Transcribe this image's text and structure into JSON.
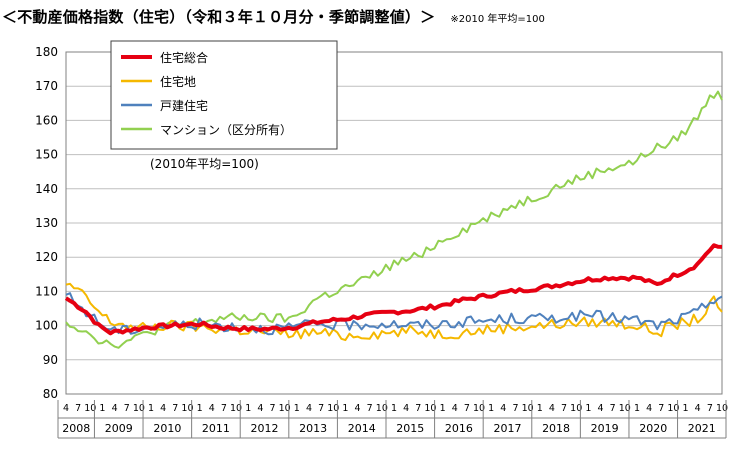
{
  "title": "＜不動産価格指数（住宅）（令和３年１０月分・季節調整値）＞",
  "base_note": "※2010 年平均=100",
  "chart_data": {
    "type": "line",
    "title": "＜不動産価格指数（住宅）（令和３年１０月分・季節調整値）＞",
    "annotation": "(2010年平均=100)",
    "ylim": [
      80,
      180
    ],
    "y_ticks": [
      80,
      90,
      100,
      110,
      120,
      130,
      140,
      150,
      160,
      170,
      180
    ],
    "x_start": "2008-04",
    "x_end": "2021-10",
    "month_tick_labels": [
      "4",
      "7",
      "10",
      "1"
    ],
    "year_labels": [
      "2008",
      "2009",
      "2010",
      "2011",
      "2012",
      "2013",
      "2014",
      "2015",
      "2016",
      "2017",
      "2018",
      "2019",
      "2020",
      "2021"
    ],
    "grid": true,
    "legend_position": "top-left",
    "series": [
      {
        "name": "住宅総合",
        "color": "#e60012",
        "width": 4,
        "anchors": [
          [
            "2008-04",
            108
          ],
          [
            "2008-06",
            106.5
          ],
          [
            "2008-09",
            104
          ],
          [
            "2008-12",
            100
          ],
          [
            "2009-03",
            98
          ],
          [
            "2009-06",
            98.5
          ],
          [
            "2009-09",
            99
          ],
          [
            "2009-12",
            99.5
          ],
          [
            "2010-06",
            100
          ],
          [
            "2011-01",
            100.5
          ],
          [
            "2011-06",
            99.5
          ],
          [
            "2012-01",
            99
          ],
          [
            "2012-06",
            99
          ],
          [
            "2012-12",
            99.5
          ],
          [
            "2013-06",
            101
          ],
          [
            "2014-01",
            102
          ],
          [
            "2014-06",
            103
          ],
          [
            "2015-01",
            104
          ],
          [
            "2015-06",
            104.5
          ],
          [
            "2016-01",
            106
          ],
          [
            "2016-06",
            107.5
          ],
          [
            "2017-01",
            109
          ],
          [
            "2017-06",
            110
          ],
          [
            "2018-01",
            111
          ],
          [
            "2018-06",
            112
          ],
          [
            "2019-01",
            113.5
          ],
          [
            "2019-06",
            114
          ],
          [
            "2020-01",
            114
          ],
          [
            "2020-06",
            112
          ],
          [
            "2020-09",
            114
          ],
          [
            "2021-01",
            116
          ],
          [
            "2021-04",
            118
          ],
          [
            "2021-06",
            121
          ],
          [
            "2021-08",
            123
          ],
          [
            "2021-10",
            123
          ]
        ]
      },
      {
        "name": "住宅地",
        "color": "#f5b800",
        "width": 2,
        "anchors": [
          [
            "2008-04",
            112
          ],
          [
            "2008-06",
            111
          ],
          [
            "2008-09",
            108
          ],
          [
            "2008-12",
            104
          ],
          [
            "2009-03",
            101
          ],
          [
            "2009-06",
            100.5
          ],
          [
            "2009-09",
            99
          ],
          [
            "2009-12",
            99.5
          ],
          [
            "2010-06",
            100
          ],
          [
            "2011-01",
            99.5
          ],
          [
            "2011-06",
            99
          ],
          [
            "2012-01",
            98.5
          ],
          [
            "2012-06",
            98
          ],
          [
            "2012-12",
            97.5
          ],
          [
            "2013-06",
            98
          ],
          [
            "2014-01",
            97
          ],
          [
            "2014-06",
            97.5
          ],
          [
            "2015-01",
            98
          ],
          [
            "2015-06",
            98.5
          ],
          [
            "2016-01",
            97.5
          ],
          [
            "2016-06",
            98
          ],
          [
            "2017-01",
            99
          ],
          [
            "2017-06",
            99.5
          ],
          [
            "2018-01",
            100
          ],
          [
            "2018-06",
            100.5
          ],
          [
            "2019-01",
            101
          ],
          [
            "2019-06",
            101
          ],
          [
            "2020-01",
            100
          ],
          [
            "2020-06",
            98
          ],
          [
            "2020-09",
            99.5
          ],
          [
            "2021-01",
            101
          ],
          [
            "2021-04",
            102
          ],
          [
            "2021-06",
            104
          ],
          [
            "2021-08",
            107
          ],
          [
            "2021-10",
            104
          ]
        ]
      },
      {
        "name": "戸建住宅",
        "color": "#4f81bd",
        "width": 2,
        "anchors": [
          [
            "2008-04",
            109
          ],
          [
            "2008-06",
            107
          ],
          [
            "2008-09",
            104
          ],
          [
            "2008-12",
            101
          ],
          [
            "2009-03",
            99
          ],
          [
            "2009-06",
            98.5
          ],
          [
            "2009-09",
            99
          ],
          [
            "2009-12",
            99.5
          ],
          [
            "2010-06",
            100
          ],
          [
            "2011-01",
            100.5
          ],
          [
            "2011-06",
            100
          ],
          [
            "2012-01",
            99.5
          ],
          [
            "2012-06",
            99
          ],
          [
            "2012-12",
            99.5
          ],
          [
            "2013-06",
            100.5
          ],
          [
            "2014-01",
            100
          ],
          [
            "2014-06",
            100.5
          ],
          [
            "2015-01",
            100.5
          ],
          [
            "2015-06",
            100
          ],
          [
            "2016-01",
            100.5
          ],
          [
            "2016-06",
            101
          ],
          [
            "2017-01",
            101.5
          ],
          [
            "2017-06",
            102
          ],
          [
            "2018-01",
            102
          ],
          [
            "2018-06",
            102.5
          ],
          [
            "2019-01",
            103
          ],
          [
            "2019-06",
            102.5
          ],
          [
            "2020-01",
            101.5
          ],
          [
            "2020-06",
            100
          ],
          [
            "2020-09",
            101
          ],
          [
            "2021-01",
            102.5
          ],
          [
            "2021-04",
            104
          ],
          [
            "2021-06",
            106
          ],
          [
            "2021-08",
            108
          ],
          [
            "2021-10",
            108.5
          ]
        ]
      },
      {
        "name": "マンション（区分所有）",
        "color": "#92d050",
        "width": 2,
        "anchors": [
          [
            "2008-04",
            101
          ],
          [
            "2008-06",
            100
          ],
          [
            "2008-09",
            98.5
          ],
          [
            "2008-12",
            96
          ],
          [
            "2009-03",
            94.5
          ],
          [
            "2009-06",
            95
          ],
          [
            "2009-09",
            96
          ],
          [
            "2009-12",
            98
          ],
          [
            "2010-06",
            100
          ],
          [
            "2011-01",
            101
          ],
          [
            "2011-06",
            102
          ],
          [
            "2012-01",
            102.5
          ],
          [
            "2012-06",
            102
          ],
          [
            "2012-12",
            102
          ],
          [
            "2013-03",
            105
          ],
          [
            "2013-06",
            108
          ],
          [
            "2014-01",
            111
          ],
          [
            "2014-06",
            113.5
          ],
          [
            "2015-01",
            118
          ],
          [
            "2015-06",
            120
          ],
          [
            "2016-01",
            125
          ],
          [
            "2016-06",
            128
          ],
          [
            "2017-01",
            132
          ],
          [
            "2017-06",
            135
          ],
          [
            "2018-01",
            138
          ],
          [
            "2018-06",
            141
          ],
          [
            "2019-01",
            144
          ],
          [
            "2019-06",
            146
          ],
          [
            "2020-01",
            148
          ],
          [
            "2020-04",
            151
          ],
          [
            "2020-06",
            152
          ],
          [
            "2020-09",
            153
          ],
          [
            "2021-01",
            157
          ],
          [
            "2021-04",
            161
          ],
          [
            "2021-06",
            165
          ],
          [
            "2021-09",
            169
          ],
          [
            "2021-10",
            166
          ]
        ]
      }
    ]
  }
}
